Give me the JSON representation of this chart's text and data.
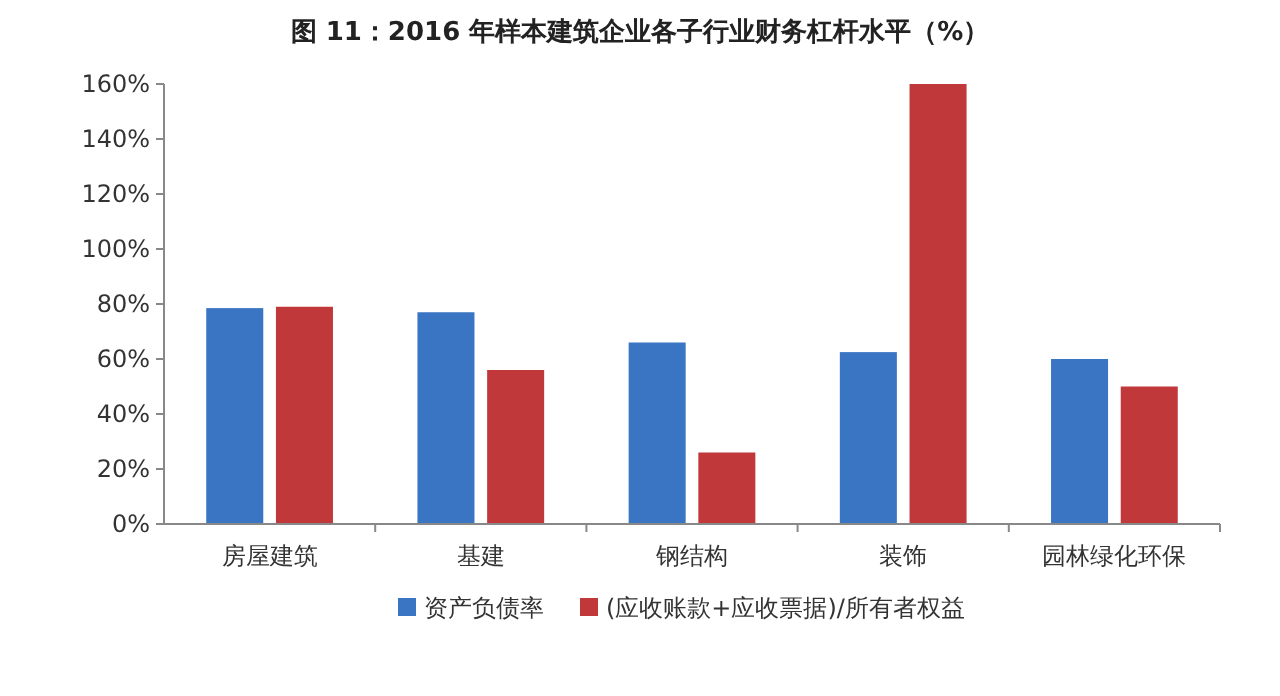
{
  "chart_data": {
    "type": "bar",
    "title": "图 11：2016 年样本建筑企业各子行业财务杠杆水平（%）",
    "categories": [
      "房屋建筑",
      "基建",
      "钢结构",
      "装饰",
      "园林绿化环保"
    ],
    "series": [
      {
        "name": "资产负债率",
        "color": "#3a75c4",
        "values": [
          78.5,
          77,
          66,
          62.5,
          60
        ]
      },
      {
        "name": "(应收账款+应收票据)/所有者权益",
        "color": "#c0383a",
        "values": [
          79,
          56,
          26,
          160,
          50
        ]
      }
    ],
    "ylim": [
      0,
      160
    ],
    "yticks": [
      {
        "value": 0,
        "label": "0%"
      },
      {
        "value": 20,
        "label": "20%"
      },
      {
        "value": 40,
        "label": "40%"
      },
      {
        "value": 60,
        "label": "60%"
      },
      {
        "value": 80,
        "label": "80%"
      },
      {
        "value": 100,
        "label": "100%"
      },
      {
        "value": 120,
        "label": "120%"
      },
      {
        "value": 140,
        "label": "140%"
      },
      {
        "value": 160,
        "label": "160%"
      }
    ],
    "grid": false,
    "legend": "bottom"
  }
}
